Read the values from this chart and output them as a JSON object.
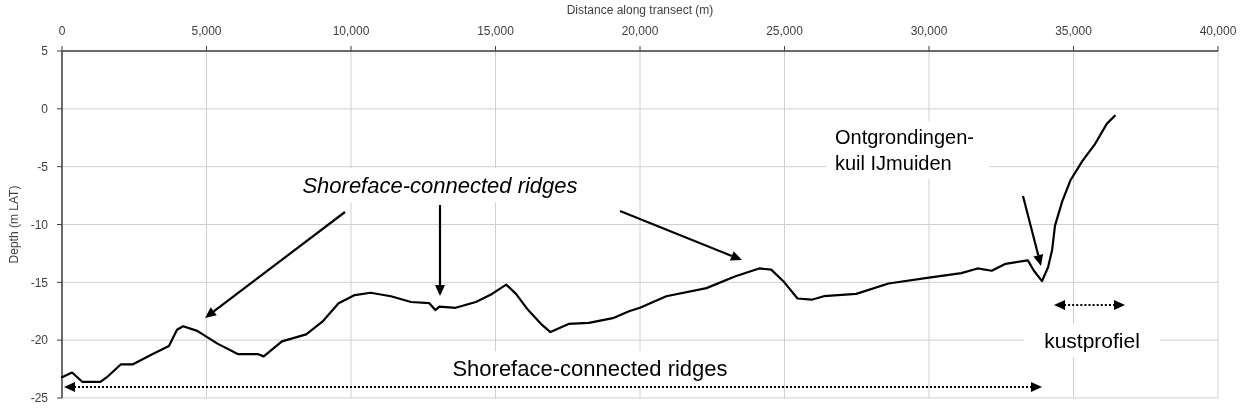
{
  "chart_data": {
    "type": "line",
    "xlabel": "Distance along transect (m)",
    "ylabel": "Depth (m LAT)",
    "xlim": [
      0,
      40000
    ],
    "xticks": [
      0,
      {
        "value": 5000,
        "label": "5,000"
      },
      {
        "value": 10000,
        "label": "10,000"
      },
      {
        "value": 15000,
        "label": "15,000"
      },
      {
        "value": 20000,
        "label": "20,000"
      },
      {
        "value": 25000,
        "label": "25,000"
      },
      {
        "value": 30000,
        "label": "30,000"
      },
      {
        "value": 35000,
        "label": "35,000"
      },
      {
        "value": 40000,
        "label": "40,000"
      }
    ],
    "ylim": [
      -25,
      5
    ],
    "yticks": [
      5,
      0,
      -5,
      -10,
      -15,
      -20,
      -25
    ],
    "grid": true,
    "marker": "none",
    "line_style": "solid",
    "series": [
      {
        "color": "#000000",
        "x": [
          0,
          350,
          700,
          1330,
          1600,
          2030,
          2440,
          3140,
          3700,
          3980,
          4190,
          4680,
          5380,
          6080,
          6770,
          6980,
          7610,
          8450,
          9010,
          9570,
          10130,
          10680,
          11380,
          12080,
          12710,
          12920,
          13060,
          13620,
          14320,
          14880,
          15370,
          15710,
          16130,
          16620,
          16900,
          17530,
          18230,
          19060,
          19620,
          20000,
          20910,
          22300,
          23280,
          24120,
          24540,
          24960,
          25450,
          25940,
          26360,
          27480,
          28600,
          30000,
          31120,
          31680,
          32170,
          32650,
          33420,
          33630,
          33910,
          34120,
          34260,
          34360,
          34610,
          34890,
          35310,
          35730,
          36150,
          36430
        ],
        "values": [
          -23.2,
          -22.8,
          -23.6,
          -23.6,
          -23.1,
          -22.1,
          -22.1,
          -21.2,
          -20.5,
          -19.1,
          -18.8,
          -19.2,
          -20.3,
          -21.2,
          -21.2,
          -21.4,
          -20.1,
          -19.5,
          -18.4,
          -16.8,
          -16.1,
          -15.9,
          -16.2,
          -16.7,
          -16.8,
          -17.4,
          -17.1,
          -17.2,
          -16.7,
          -16.0,
          -15.2,
          -16.0,
          -17.4,
          -18.7,
          -19.3,
          -18.6,
          -18.5,
          -18.1,
          -17.5,
          -17.2,
          -16.2,
          -15.5,
          -14.5,
          -13.8,
          -13.9,
          -14.9,
          -16.4,
          -16.5,
          -16.2,
          -16.0,
          -15.1,
          -14.6,
          -14.2,
          -13.8,
          -14.0,
          -13.4,
          -13.1,
          -14.0,
          -14.9,
          -13.7,
          -12.2,
          -10.1,
          -8.0,
          -6.2,
          -4.5,
          -3.1,
          -1.3,
          -0.6
        ]
      }
    ],
    "annotations": [
      "Shoreface-connected ridges",
      "Shoreface-connected ridges",
      "Ontgrondingen-\nkuil IJmuiden",
      "kustprofiel"
    ]
  }
}
